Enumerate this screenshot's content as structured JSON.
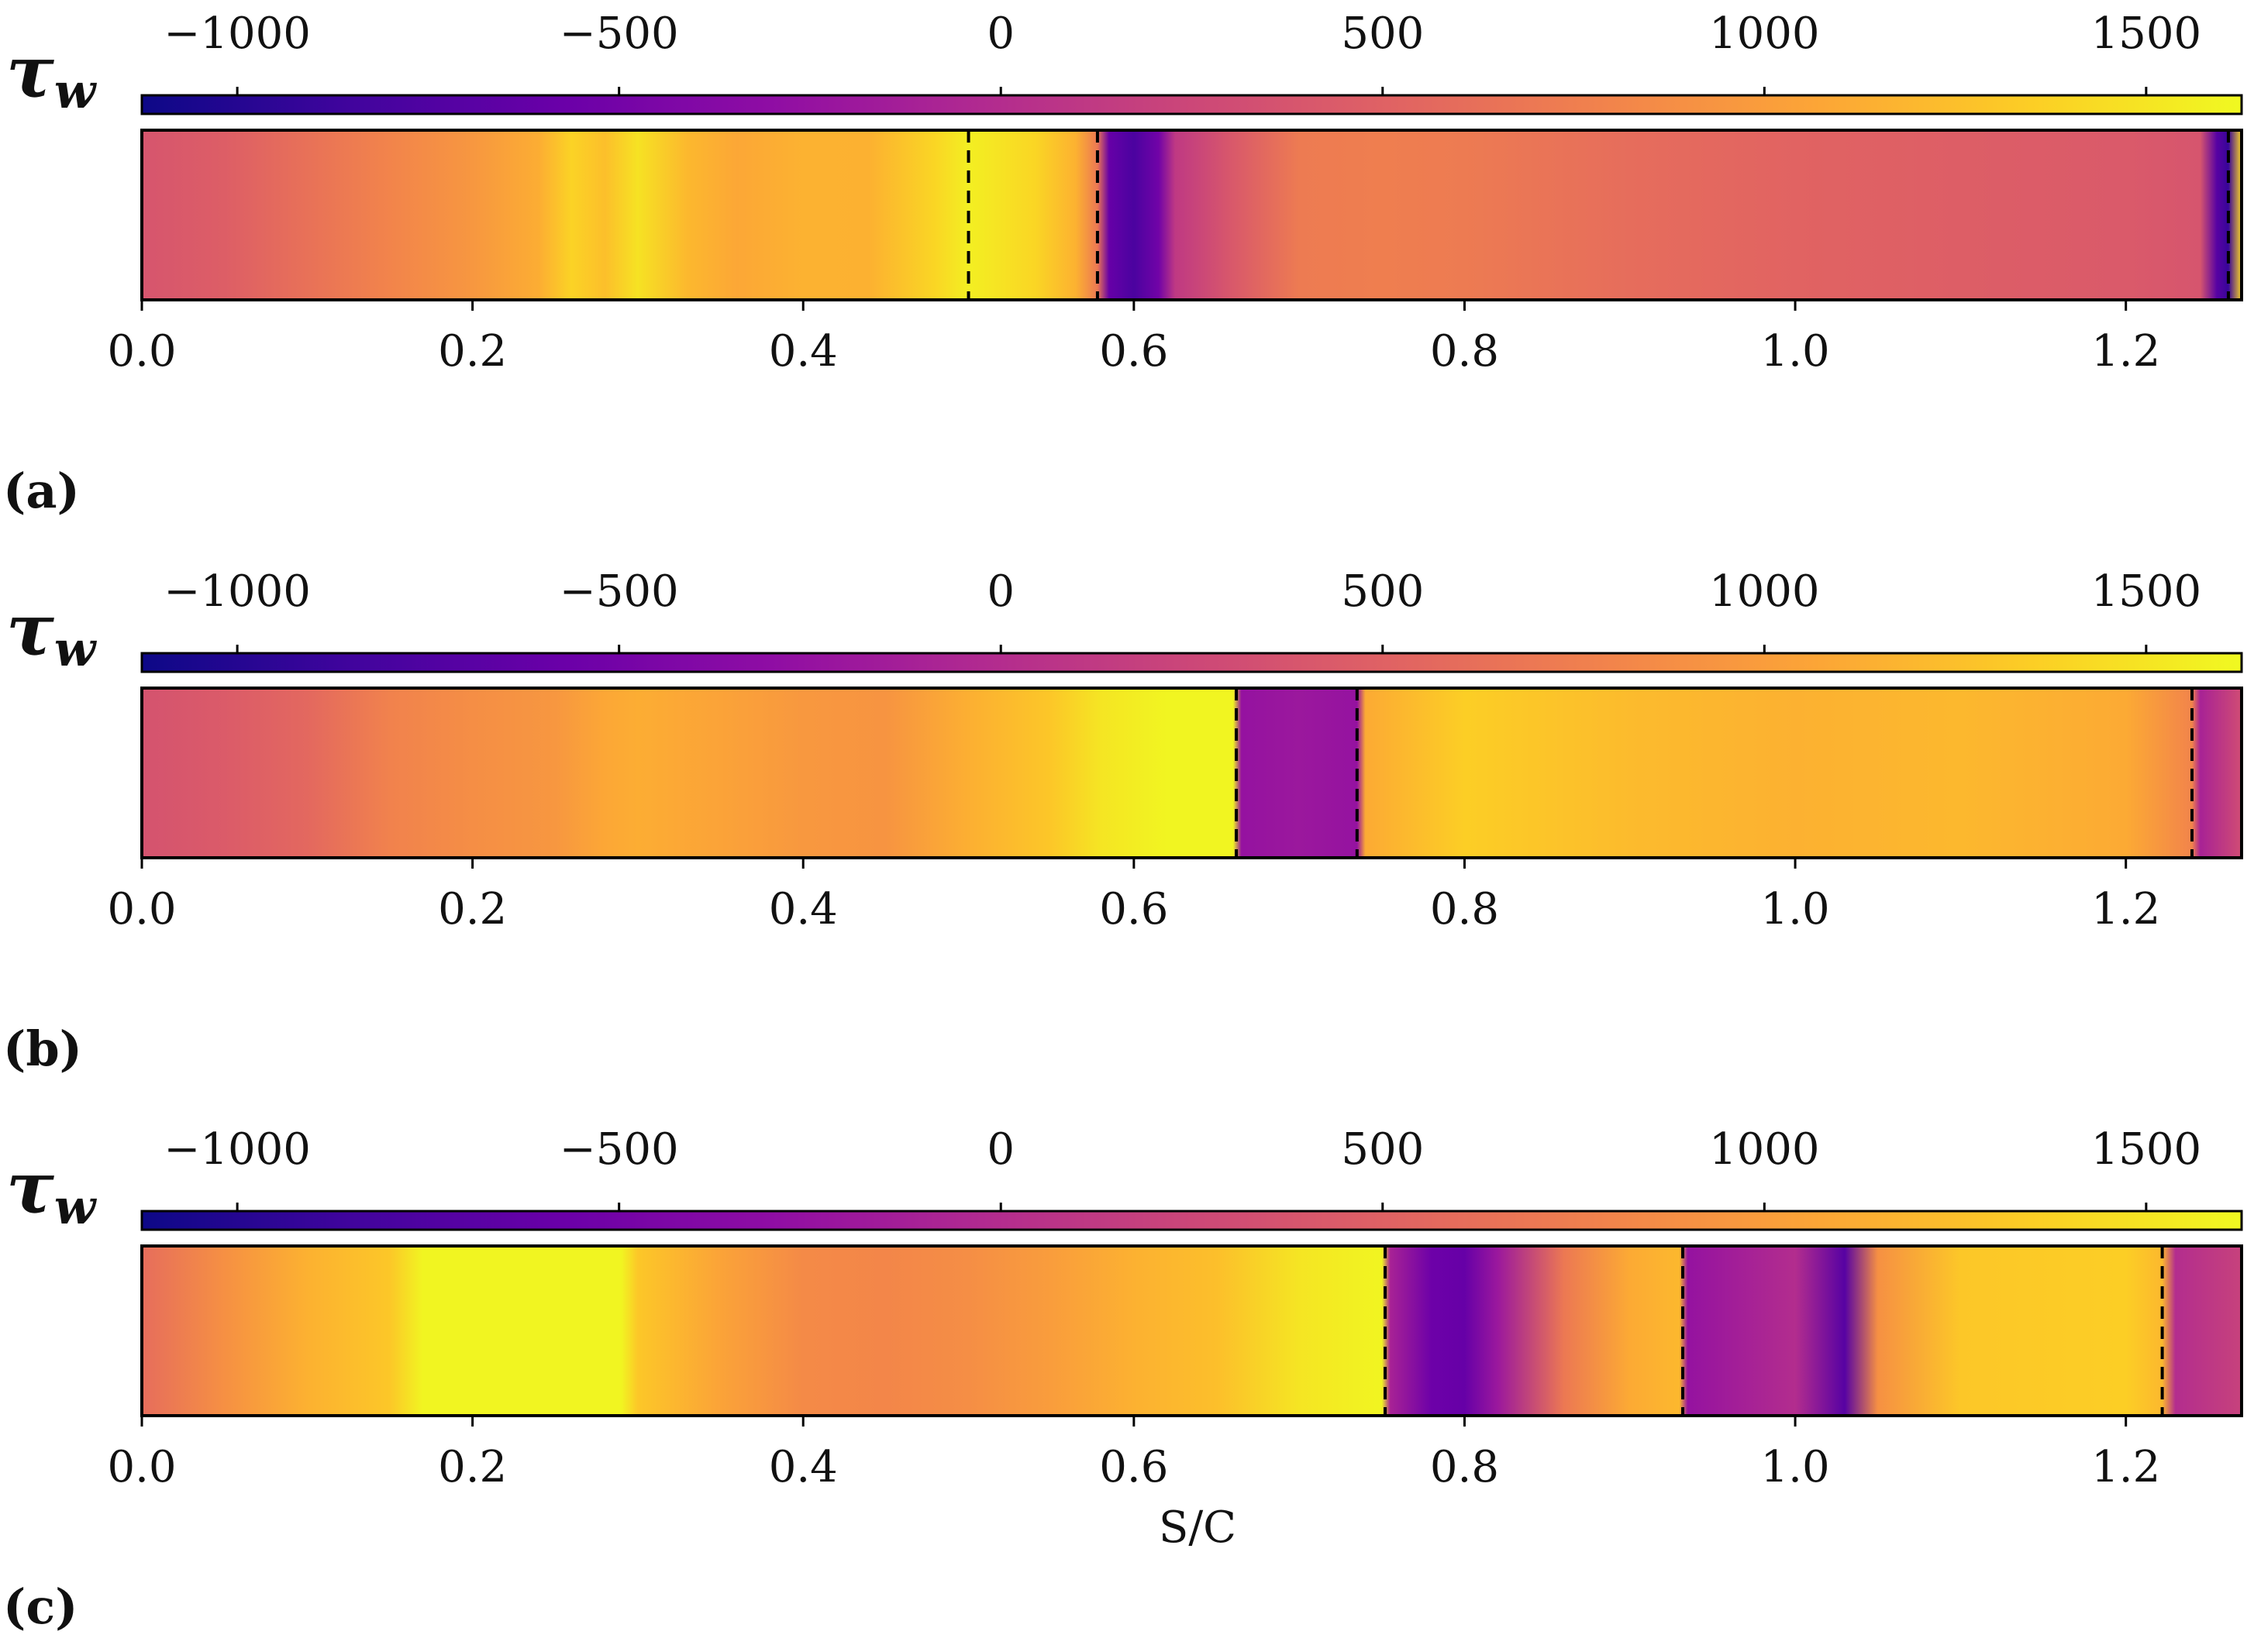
{
  "chart_data": {
    "type": "heatmap",
    "colormap": "plasma",
    "colorbar": {
      "label_symbol": "τ",
      "label_subscript": "w",
      "range": [
        -1125,
        1625
      ],
      "ticks": [
        -1000,
        -500,
        0,
        500,
        1000,
        1500
      ],
      "tick_labels": [
        "−1000",
        "−500",
        "0",
        "500",
        "1000",
        "1500"
      ]
    },
    "x_axis": {
      "range": [
        0.0,
        1.27
      ],
      "ticks": [
        0.0,
        0.2,
        0.4,
        0.6,
        0.8,
        1.0,
        1.2
      ],
      "tick_labels": [
        "0.0",
        "0.2",
        "0.4",
        "0.6",
        "0.8",
        "1.0",
        "1.2"
      ],
      "xlabel": "S/C"
    },
    "panels": [
      {
        "label": "(a)",
        "dashed_lines": [
          0.5,
          0.578,
          1.262
        ],
        "profile": [
          [
            0.0,
            380
          ],
          [
            0.05,
            470
          ],
          [
            0.1,
            640
          ],
          [
            0.15,
            800
          ],
          [
            0.2,
            950
          ],
          [
            0.24,
            1120
          ],
          [
            0.26,
            1380
          ],
          [
            0.28,
            1250
          ],
          [
            0.3,
            1480
          ],
          [
            0.33,
            1200
          ],
          [
            0.36,
            1080
          ],
          [
            0.4,
            1160
          ],
          [
            0.44,
            1150
          ],
          [
            0.48,
            1400
          ],
          [
            0.5,
            1560
          ],
          [
            0.54,
            1400
          ],
          [
            0.565,
            1150
          ],
          [
            0.578,
            700
          ],
          [
            0.585,
            -600
          ],
          [
            0.6,
            -780
          ],
          [
            0.615,
            -520
          ],
          [
            0.625,
            120
          ],
          [
            0.66,
            420
          ],
          [
            0.7,
            720
          ],
          [
            0.75,
            750
          ],
          [
            0.8,
            720
          ],
          [
            0.9,
            600
          ],
          [
            1.0,
            520
          ],
          [
            1.1,
            470
          ],
          [
            1.2,
            430
          ],
          [
            1.245,
            380
          ],
          [
            1.255,
            -700
          ],
          [
            1.262,
            -900
          ],
          [
            1.27,
            1400
          ]
        ]
      },
      {
        "label": "(b)",
        "dashed_lines": [
          0.662,
          0.735,
          1.24
        ],
        "profile": [
          [
            0.0,
            360
          ],
          [
            0.05,
            440
          ],
          [
            0.1,
            560
          ],
          [
            0.15,
            780
          ],
          [
            0.2,
            880
          ],
          [
            0.25,
            950
          ],
          [
            0.28,
            1080
          ],
          [
            0.3,
            1120
          ],
          [
            0.35,
            1050
          ],
          [
            0.4,
            960
          ],
          [
            0.45,
            930
          ],
          [
            0.5,
            1140
          ],
          [
            0.55,
            1300
          ],
          [
            0.58,
            1500
          ],
          [
            0.62,
            1600
          ],
          [
            0.66,
            1600
          ],
          [
            0.665,
            -250
          ],
          [
            0.7,
            -200
          ],
          [
            0.735,
            -250
          ],
          [
            0.74,
            1100
          ],
          [
            0.8,
            1350
          ],
          [
            0.9,
            1220
          ],
          [
            1.0,
            1150
          ],
          [
            1.1,
            1200
          ],
          [
            1.2,
            1100
          ],
          [
            1.24,
            800
          ],
          [
            1.245,
            -100
          ],
          [
            1.27,
            300
          ]
        ]
      },
      {
        "label": "(c)",
        "dashed_lines": [
          0.752,
          0.932,
          1.222
        ],
        "profile": [
          [
            0.0,
            600
          ],
          [
            0.05,
            900
          ],
          [
            0.1,
            1150
          ],
          [
            0.15,
            1300
          ],
          [
            0.17,
            1600
          ],
          [
            0.29,
            1600
          ],
          [
            0.3,
            1300
          ],
          [
            0.35,
            1050
          ],
          [
            0.4,
            850
          ],
          [
            0.45,
            820
          ],
          [
            0.5,
            880
          ],
          [
            0.55,
            1000
          ],
          [
            0.6,
            1150
          ],
          [
            0.65,
            1250
          ],
          [
            0.7,
            1500
          ],
          [
            0.75,
            1600
          ],
          [
            0.755,
            -100
          ],
          [
            0.78,
            -550
          ],
          [
            0.8,
            -600
          ],
          [
            0.82,
            -200
          ],
          [
            0.86,
            700
          ],
          [
            0.9,
            1100
          ],
          [
            0.93,
            1200
          ],
          [
            0.935,
            -250
          ],
          [
            1.0,
            0
          ],
          [
            1.03,
            -700
          ],
          [
            1.05,
            900
          ],
          [
            1.1,
            1300
          ],
          [
            1.2,
            1350
          ],
          [
            1.222,
            1200
          ],
          [
            1.23,
            0
          ],
          [
            1.27,
            200
          ]
        ]
      }
    ]
  }
}
